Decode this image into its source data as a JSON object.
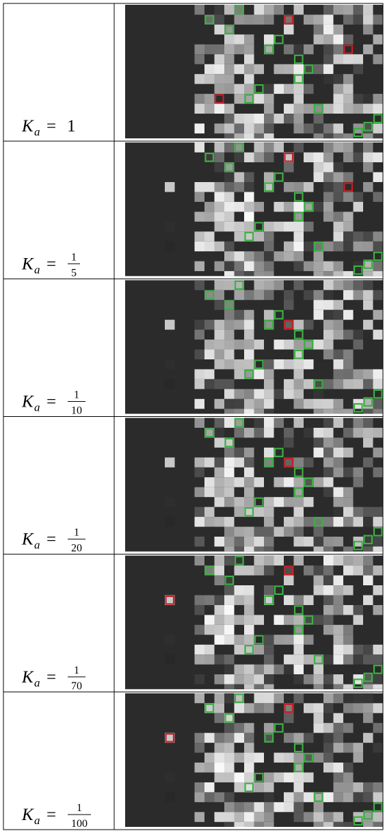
{
  "figure": {
    "rows": [
      {
        "label": {
          "symbol": "K",
          "subscript": "a",
          "relation": "=",
          "value": "1"
        }
      },
      {
        "label": {
          "symbol": "K",
          "subscript": "a",
          "relation": "=",
          "numerator": "1",
          "denominator": "5"
        }
      },
      {
        "label": {
          "symbol": "K",
          "subscript": "a",
          "relation": "=",
          "numerator": "1",
          "denominator": "10"
        }
      },
      {
        "label": {
          "symbol": "K",
          "subscript": "a",
          "relation": "=",
          "numerator": "1",
          "denominator": "20"
        }
      },
      {
        "label": {
          "symbol": "K",
          "subscript": "a",
          "relation": "=",
          "numerator": "1",
          "denominator": "70"
        }
      },
      {
        "label": {
          "symbol": "K",
          "subscript": "a",
          "relation": "=",
          "numerator": "1",
          "denominator": "100"
        }
      }
    ]
  }
}
